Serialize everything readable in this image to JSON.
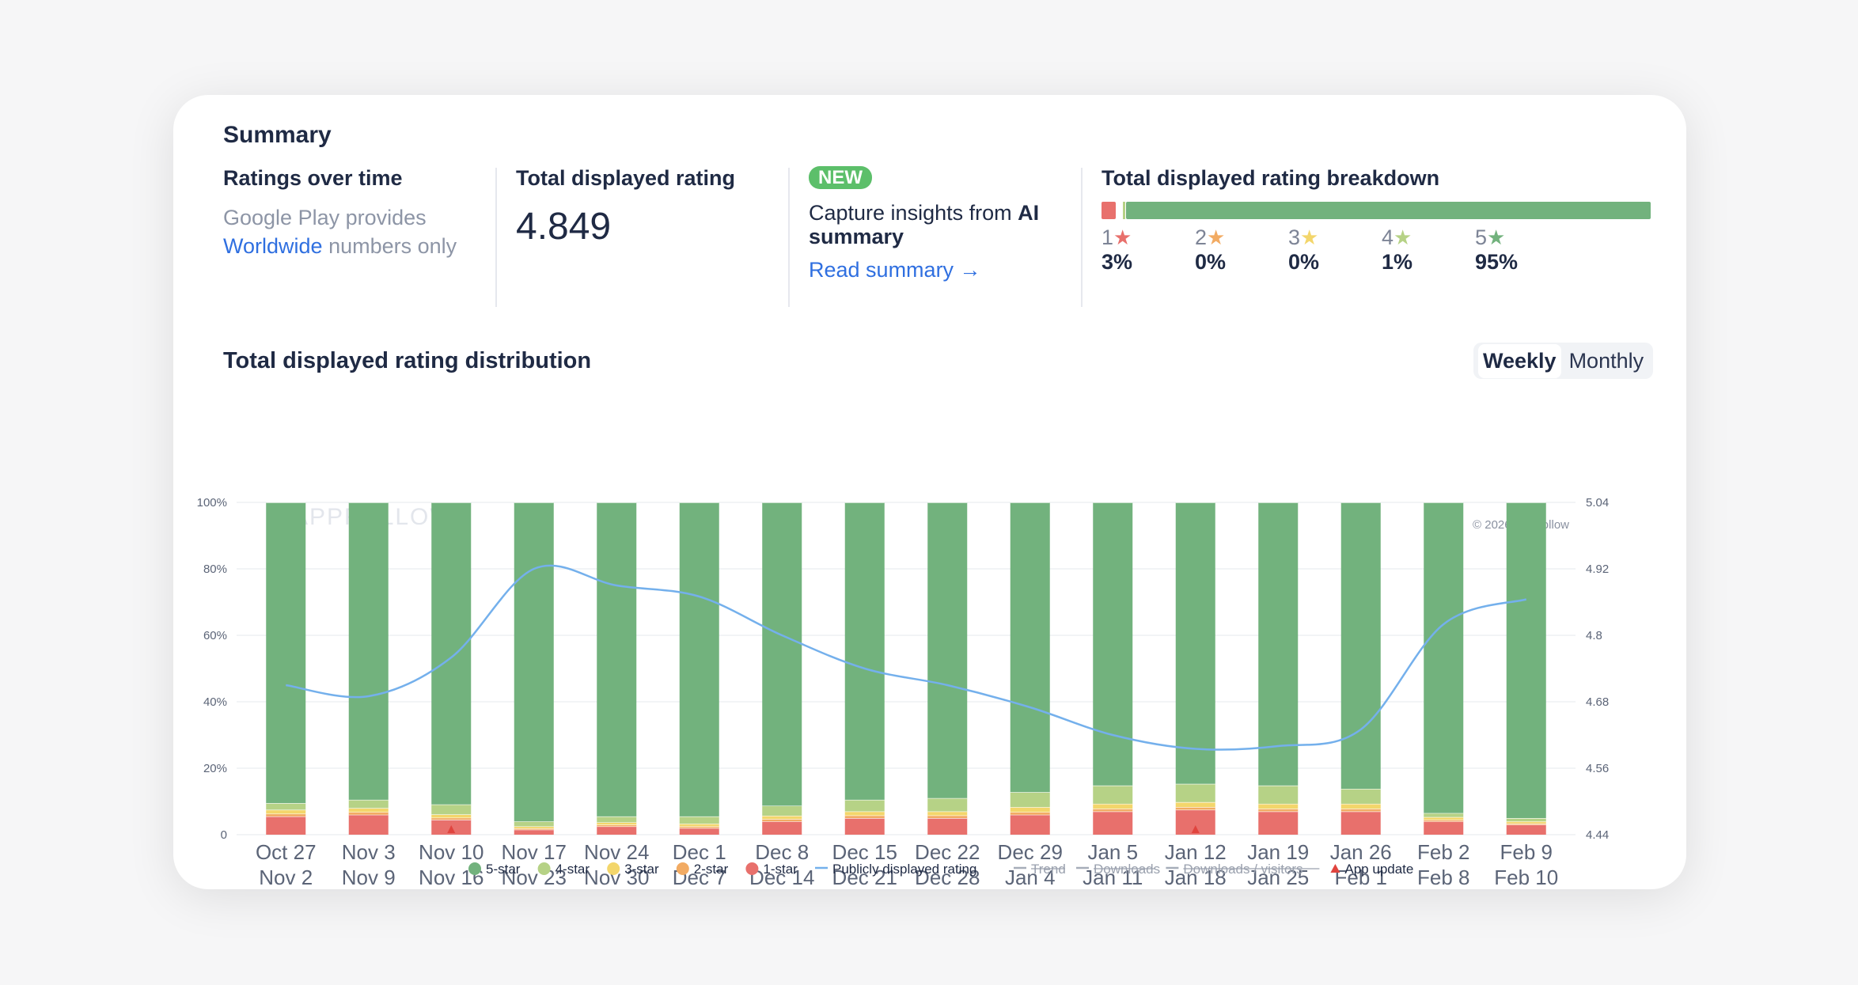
{
  "summary": {
    "title": "Summary",
    "ratings_over_time": {
      "title": "Ratings over time",
      "line1": "Google Play provides",
      "link": "Worldwide",
      "suffix": " numbers only"
    },
    "total_rating": {
      "title": "Total displayed rating",
      "value": "4.849"
    },
    "ai": {
      "badge": "NEW",
      "text_plain": "Capture insights from ",
      "text_bold1": "AI",
      "text_bold2": "summary",
      "link": "Read summary →"
    },
    "breakdown": {
      "title": "Total displayed rating breakdown",
      "items": [
        {
          "stars": "1",
          "pct": "3%",
          "value": 3,
          "color": "#e8706c"
        },
        {
          "stars": "2",
          "pct": "0%",
          "value": 0,
          "color": "#f2ab63"
        },
        {
          "stars": "3",
          "pct": "0%",
          "value": 0,
          "color": "#f3d66b"
        },
        {
          "stars": "4",
          "pct": "1%",
          "value": 1,
          "color": "#b6d286"
        },
        {
          "stars": "5",
          "pct": "95%",
          "value": 95,
          "color": "#72b27d"
        }
      ]
    }
  },
  "distribution": {
    "title": "Total displayed rating distribution",
    "toggle": {
      "weekly": "Weekly",
      "monthly": "Monthly",
      "selected": "Weekly"
    },
    "watermark": "APPFOLLOW",
    "copyright": "© 2026 AppFollow"
  },
  "chart_data": {
    "type": "bar",
    "stacked": true,
    "categories": [
      [
        "Oct 27",
        "Nov 2"
      ],
      [
        "Nov 3",
        "Nov 9"
      ],
      [
        "Nov 10",
        "Nov 16"
      ],
      [
        "Nov 17",
        "Nov 23"
      ],
      [
        "Nov 24",
        "Nov 30"
      ],
      [
        "Dec 1",
        "Dec 7"
      ],
      [
        "Dec 8",
        "Dec 14"
      ],
      [
        "Dec 15",
        "Dec 21"
      ],
      [
        "Dec 22",
        "Dec 28"
      ],
      [
        "Dec 29",
        "Jan 4"
      ],
      [
        "Jan 5",
        "Jan 11"
      ],
      [
        "Jan 12",
        "Jan 18"
      ],
      [
        "Jan 19",
        "Jan 25"
      ],
      [
        "Jan 26",
        "Feb 1"
      ],
      [
        "Feb 2",
        "Feb 8"
      ],
      [
        "Feb 9",
        "Feb 10"
      ]
    ],
    "y_left_ticks": [
      "0",
      "20%",
      "40%",
      "60%",
      "80%",
      "100%"
    ],
    "y_left_range": [
      0,
      100
    ],
    "y_right_ticks": [
      "4.44",
      "4.56",
      "4.68",
      "4.8",
      "4.92",
      "5.04"
    ],
    "y_right_range": [
      4.44,
      5.04
    ],
    "series": [
      {
        "name": "1-star",
        "color": "#e8706c",
        "values": [
          5.5,
          6.0,
          4.5,
          1.5,
          2.5,
          2.0,
          4.0,
          5.0,
          5.0,
          6.0,
          7.0,
          7.5,
          7.0,
          7.0,
          4.0,
          3.0
        ]
      },
      {
        "name": "2-star",
        "color": "#f2ab63",
        "values": [
          0.8,
          0.8,
          0.6,
          0.4,
          0.5,
          0.5,
          0.7,
          0.8,
          0.8,
          0.8,
          0.8,
          0.8,
          0.8,
          0.8,
          0.5,
          0.4
        ]
      },
      {
        "name": "3-star",
        "color": "#f3d66b",
        "values": [
          1.2,
          1.2,
          1.0,
          0.6,
          0.7,
          0.8,
          1.0,
          1.2,
          1.2,
          1.5,
          1.5,
          1.5,
          1.5,
          1.5,
          0.8,
          0.6
        ]
      },
      {
        "name": "4-star",
        "color": "#b6d286",
        "values": [
          2.0,
          2.5,
          3.0,
          1.5,
          1.8,
          2.2,
          3.0,
          3.5,
          4.0,
          4.5,
          5.5,
          5.5,
          5.5,
          4.5,
          1.2,
          1.0
        ]
      },
      {
        "name": "5-star",
        "color": "#72b27d",
        "values": [
          90.5,
          89.5,
          90.9,
          96.0,
          94.5,
          94.5,
          91.3,
          89.5,
          89.0,
          87.2,
          85.2,
          84.7,
          85.2,
          86.2,
          93.5,
          95.0
        ]
      }
    ],
    "line": {
      "name": "Publicly displayed rating",
      "color": "#74b0ec",
      "values": [
        4.71,
        4.69,
        4.76,
        4.92,
        4.89,
        4.87,
        4.8,
        4.74,
        4.71,
        4.67,
        4.62,
        4.595,
        4.6,
        4.63,
        4.82,
        4.865
      ]
    },
    "app_updates": [
      2,
      11
    ],
    "legend": [
      {
        "label": "5-star",
        "kind": "dot",
        "color": "#72b27d",
        "active": true
      },
      {
        "label": "4-star",
        "kind": "dot",
        "color": "#b6d286",
        "active": true
      },
      {
        "label": "3-star",
        "kind": "dot",
        "color": "#f3d66b",
        "active": true
      },
      {
        "label": "2-star",
        "kind": "dot",
        "color": "#f2ab63",
        "active": true
      },
      {
        "label": "1-star",
        "kind": "dot",
        "color": "#e8706c",
        "active": true
      },
      {
        "label": "Publicly displayed rating",
        "kind": "line",
        "color": "#74b0ec",
        "active": true
      },
      {
        "label": "Trend",
        "kind": "line",
        "color": "#a6adb9",
        "active": false
      },
      {
        "label": "Downloads",
        "kind": "line",
        "color": "#a6adb9",
        "active": false
      },
      {
        "label": "Downloads / visitors",
        "kind": "line",
        "color": "#a6adb9",
        "active": false
      },
      {
        "label": "App update",
        "kind": "triangle",
        "color": "#e0443e",
        "active": true
      }
    ]
  }
}
